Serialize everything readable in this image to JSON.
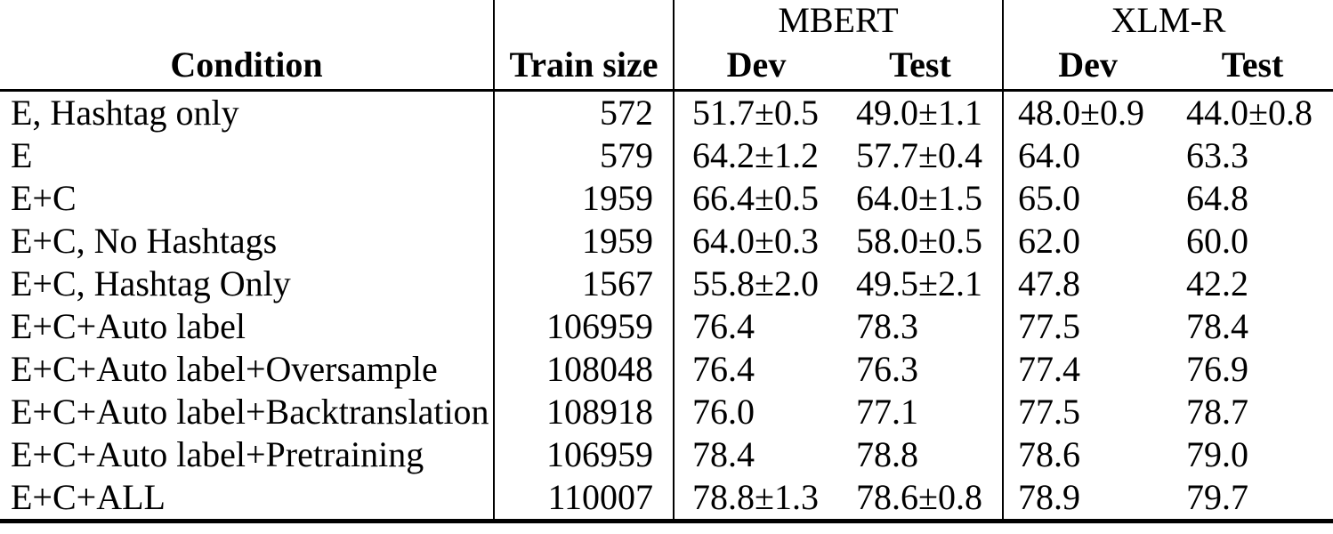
{
  "page": {
    "background_color": "#ffffff",
    "text_color": "#000000",
    "rule_color": "#000000"
  },
  "table": {
    "groups": [
      {
        "label": "MBERT"
      },
      {
        "label": "XLM-R"
      }
    ],
    "headers": {
      "condition": "Condition",
      "train_size": "Train size",
      "mbert_dev": "Dev",
      "mbert_test": "Test",
      "xlmr_dev": "Dev",
      "xlmr_test": "Test"
    },
    "rows": [
      {
        "condition": "E, Hashtag only",
        "train_size": "572",
        "mbert_dev": "51.7±0.5",
        "mbert_test": "49.0±1.1",
        "xlmr_dev": "48.0±0.9",
        "xlmr_test": "44.0±0.8"
      },
      {
        "condition": "E",
        "train_size": "579",
        "mbert_dev": "64.2±1.2",
        "mbert_test": "57.7±0.4",
        "xlmr_dev": "64.0",
        "xlmr_test": "63.3"
      },
      {
        "condition": "E+C",
        "train_size": "1959",
        "mbert_dev": "66.4±0.5",
        "mbert_test": "64.0±1.5",
        "xlmr_dev": "65.0",
        "xlmr_test": "64.8"
      },
      {
        "condition": "E+C, No Hashtags",
        "train_size": "1959",
        "mbert_dev": "64.0±0.3",
        "mbert_test": "58.0±0.5",
        "xlmr_dev": "62.0",
        "xlmr_test": "60.0"
      },
      {
        "condition": "E+C, Hashtag Only",
        "train_size": "1567",
        "mbert_dev": "55.8±2.0",
        "mbert_test": "49.5±2.1",
        "xlmr_dev": "47.8",
        "xlmr_test": "42.2"
      },
      {
        "condition": "E+C+Auto label",
        "train_size": "106959",
        "mbert_dev": "76.4",
        "mbert_test": "78.3",
        "xlmr_dev": "77.5",
        "xlmr_test": "78.4"
      },
      {
        "condition": "E+C+Auto label+Oversample",
        "train_size": "108048",
        "mbert_dev": "76.4",
        "mbert_test": "76.3",
        "xlmr_dev": "77.4",
        "xlmr_test": "76.9"
      },
      {
        "condition": "E+C+Auto label+Backtranslation",
        "train_size": "108918",
        "mbert_dev": "76.0",
        "mbert_test": "77.1",
        "xlmr_dev": "77.5",
        "xlmr_test": "78.7"
      },
      {
        "condition": "E+C+Auto label+Pretraining",
        "train_size": "106959",
        "mbert_dev": "78.4",
        "mbert_test": "78.8",
        "xlmr_dev": "78.6",
        "xlmr_test": "79.0"
      },
      {
        "condition": "E+C+ALL",
        "train_size": "110007",
        "mbert_dev": "78.8±1.3",
        "mbert_test": "78.6±0.8",
        "xlmr_dev": "78.9",
        "xlmr_test": "79.7"
      }
    ]
  }
}
